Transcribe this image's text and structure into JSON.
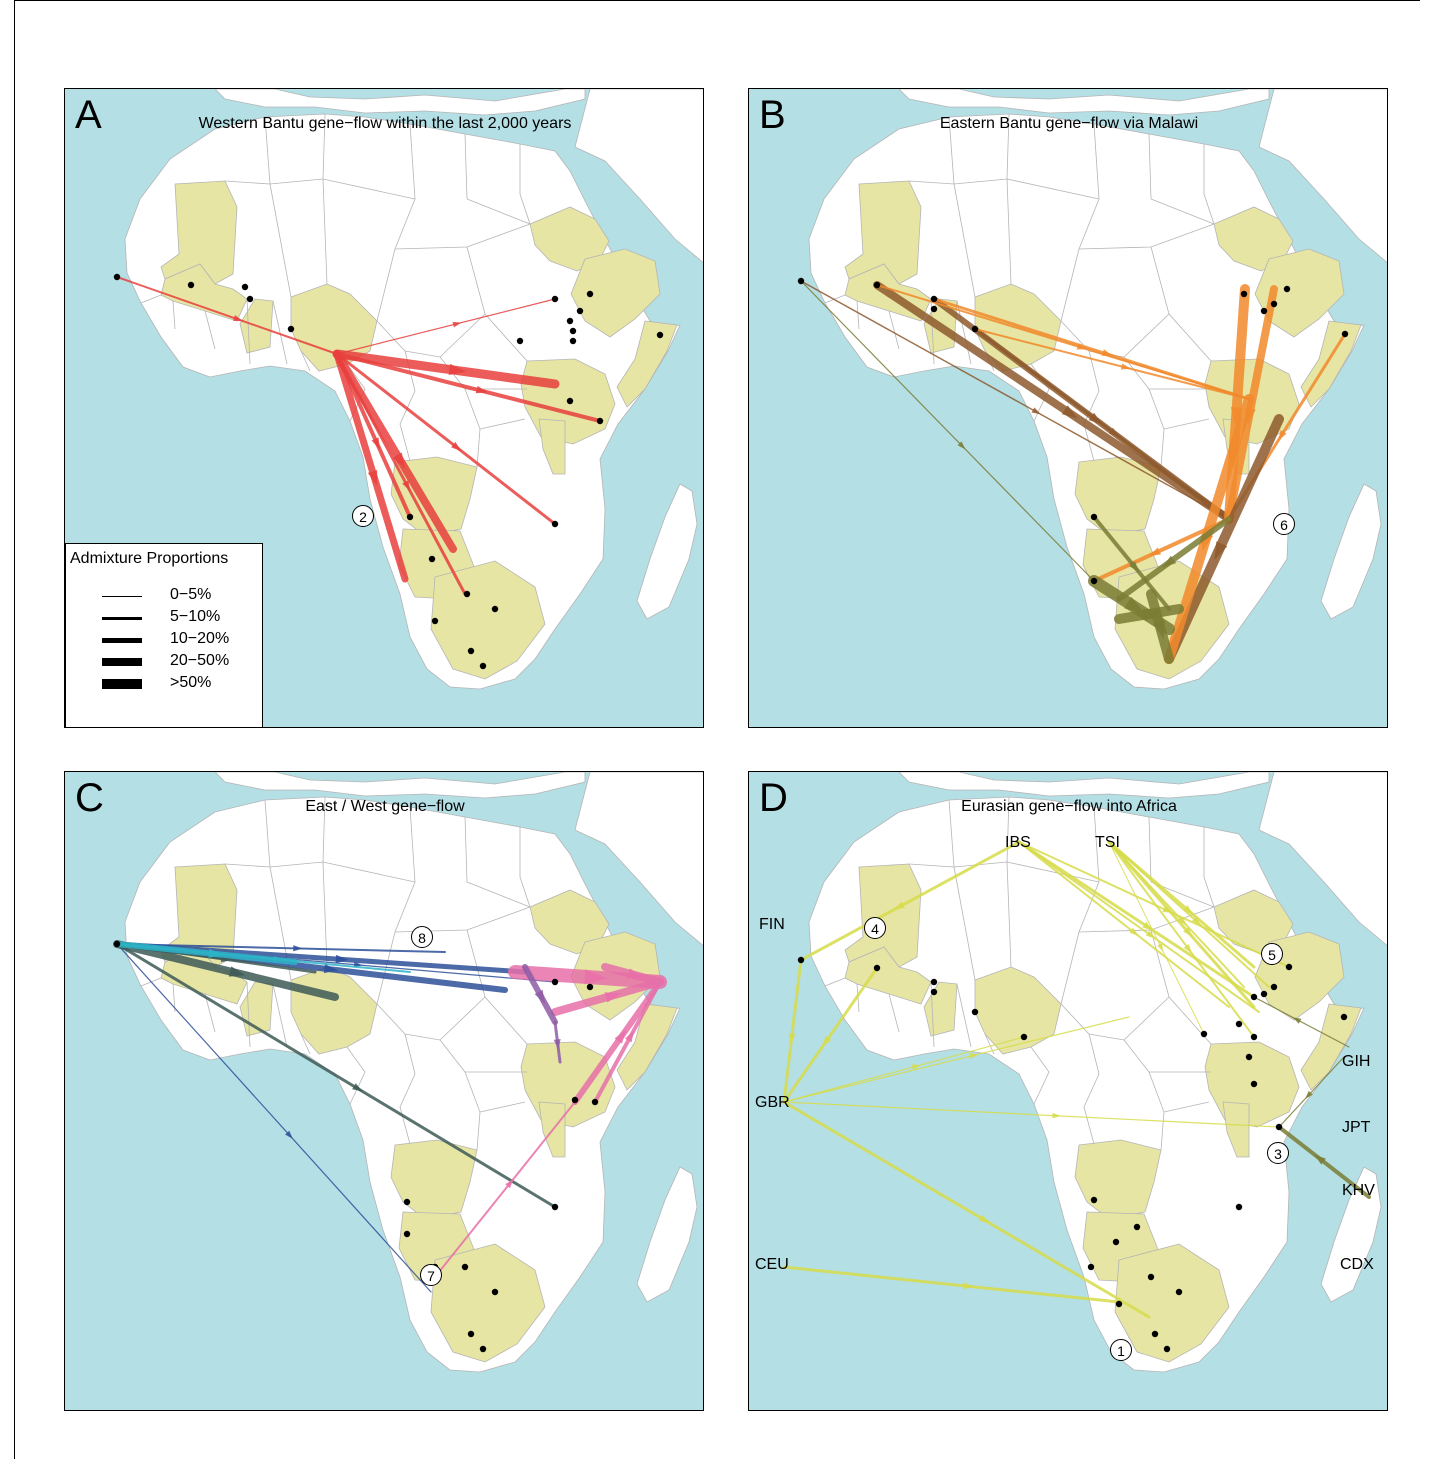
{
  "panels": {
    "A": {
      "letter": "A",
      "title": "Western Bantu gene−flow within the last 2,000 years",
      "event": "2"
    },
    "B": {
      "letter": "B",
      "title": "Eastern Bantu gene−flow via Malawi",
      "event": "6"
    },
    "C": {
      "letter": "C",
      "title": "East / West gene−flow",
      "events": [
        "8",
        "7"
      ]
    },
    "D": {
      "letter": "D",
      "title": "Eurasian gene−flow into Africa",
      "events": [
        "4",
        "5",
        "3",
        "1"
      ]
    }
  },
  "legend": {
    "title": "Admixture Proportions",
    "items": [
      "0−5%",
      "5−10%",
      "10−20%",
      "20−50%",
      ">50%"
    ]
  },
  "populations": [
    "IBS",
    "TSI",
    "FIN",
    "GBR",
    "GIH",
    "JPT",
    "KHV",
    "CEU",
    "CDX"
  ],
  "colors": {
    "sea": "#b3dfe5",
    "land": "#ffffff",
    "highlight": "#e6e5a3",
    "border": "#b5b5b5",
    "bantu_west": "#e8403e",
    "bantu_east_orange": "#f28a2c",
    "bantu_east_brown": "#8e5a2d",
    "bantu_east_olive": "#7b7d35",
    "blue": "#2d4f9a",
    "cyan": "#2cb5c8",
    "darkslate": "#3f5b57",
    "pink": "#e770a9",
    "purple": "#8f5ca5",
    "eurasian": "#d7dc4b"
  }
}
